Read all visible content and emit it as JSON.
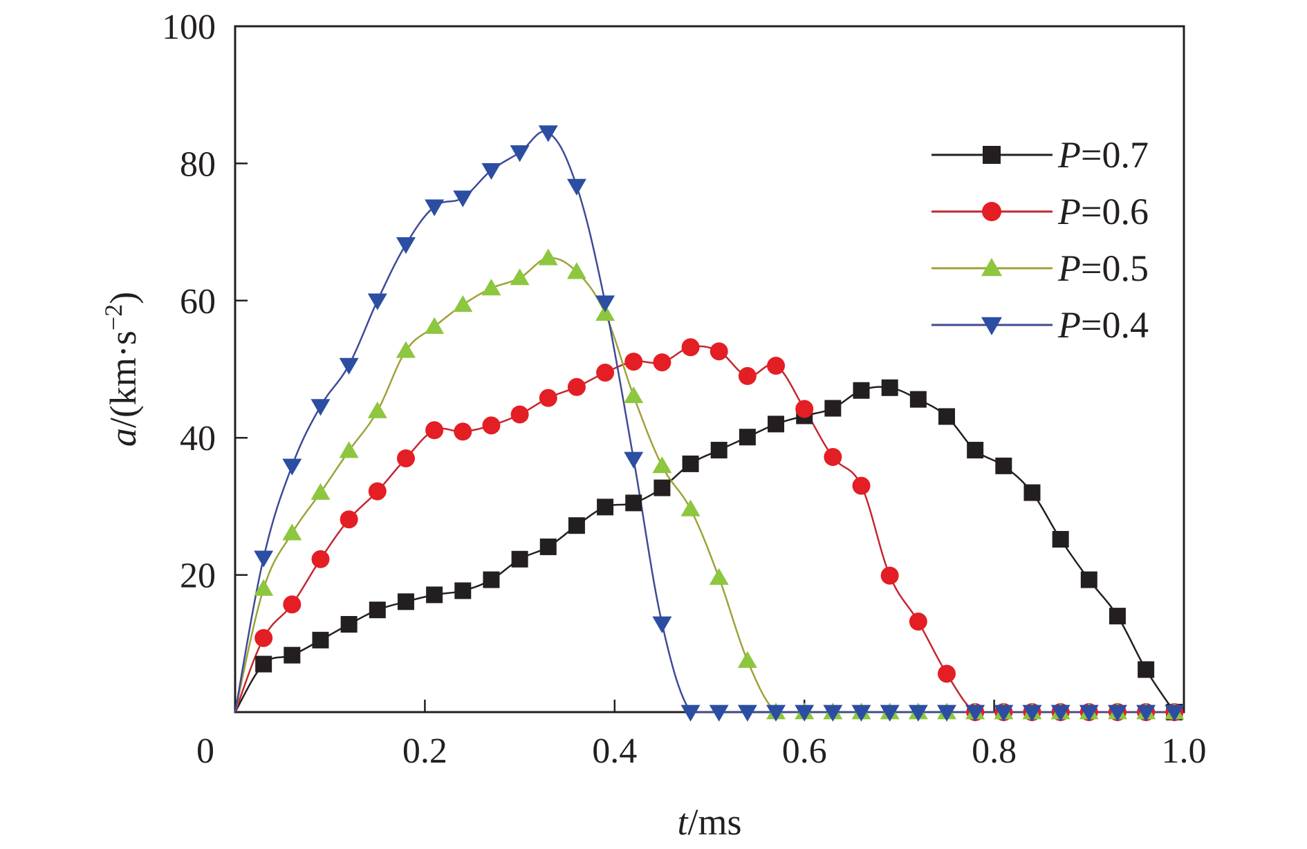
{
  "chart_data": {
    "type": "line",
    "title": "",
    "xlabel": {
      "var": "t",
      "unit": "/ms"
    },
    "ylabel": {
      "var": "a",
      "unit_prefix": "/(km·s",
      "unit_sup": "−2",
      "unit_suffix": ")"
    },
    "xlim": [
      0,
      1.0
    ],
    "ylim": [
      0,
      100
    ],
    "x_ticks": [
      0,
      0.2,
      0.4,
      0.6,
      0.8,
      1.0
    ],
    "x_tick_labels": [
      "0",
      "0.2",
      "0.4",
      "0.6",
      "0.8",
      "1.0"
    ],
    "y_ticks": [
      20,
      40,
      60,
      80,
      100
    ],
    "y_tick_labels": [
      "20",
      "40",
      "60",
      "80",
      "100"
    ],
    "grid": false,
    "legend_position": "top-right",
    "series": [
      {
        "name": "P=0.7",
        "name_var": "P",
        "name_value": "=0.7",
        "color": "#231f20",
        "line_color": "#231f20",
        "marker": "square",
        "x": [
          0,
          0.03,
          0.06,
          0.09,
          0.12,
          0.15,
          0.18,
          0.21,
          0.24,
          0.27,
          0.3,
          0.33,
          0.36,
          0.39,
          0.42,
          0.45,
          0.48,
          0.51,
          0.54,
          0.57,
          0.6,
          0.63,
          0.66,
          0.69,
          0.72,
          0.75,
          0.78,
          0.81,
          0.84,
          0.87,
          0.9,
          0.93,
          0.96,
          0.99
        ],
        "y": [
          0,
          7,
          8.3,
          10.5,
          12.8,
          14.9,
          16.1,
          17.1,
          17.7,
          19.3,
          22.3,
          24.1,
          27.2,
          29.9,
          30.5,
          32.7,
          36.2,
          38.2,
          40.1,
          42.0,
          43.2,
          44.3,
          46.9,
          47.3,
          45.6,
          43.1,
          38.2,
          35.9,
          32.0,
          25.2,
          19.3,
          14.0,
          6.2,
          0
        ]
      },
      {
        "name": "P=0.6",
        "name_var": "P",
        "name_value": "=0.6",
        "color": "#e31e24",
        "line_color": "#c4262e",
        "marker": "circle",
        "x": [
          0,
          0.03,
          0.06,
          0.09,
          0.12,
          0.15,
          0.18,
          0.21,
          0.24,
          0.27,
          0.3,
          0.33,
          0.36,
          0.39,
          0.42,
          0.45,
          0.48,
          0.51,
          0.54,
          0.57,
          0.6,
          0.63,
          0.66,
          0.69,
          0.72,
          0.75,
          0.78,
          0.81,
          0.84,
          0.87,
          0.9,
          0.93,
          0.96,
          0.99
        ],
        "y": [
          0,
          10.8,
          15.7,
          22.3,
          28.1,
          32.2,
          37.0,
          41.1,
          40.9,
          41.8,
          43.4,
          45.8,
          47.4,
          49.5,
          51.1,
          51.0,
          53.2,
          52.6,
          49.0,
          50.5,
          44.2,
          37.2,
          33.0,
          19.9,
          13.2,
          5.6,
          0,
          0,
          0,
          0,
          0,
          0,
          0,
          0
        ]
      },
      {
        "name": "P=0.5",
        "name_var": "P",
        "name_value": "=0.5",
        "color": "#8dc63f",
        "line_color": "#9ea238",
        "marker": "triangle-up",
        "x": [
          0,
          0.03,
          0.06,
          0.09,
          0.12,
          0.15,
          0.18,
          0.21,
          0.24,
          0.27,
          0.3,
          0.33,
          0.36,
          0.39,
          0.42,
          0.45,
          0.48,
          0.51,
          0.54,
          0.57,
          0.6,
          0.63,
          0.66,
          0.69,
          0.72,
          0.75,
          0.78,
          0.81,
          0.84,
          0.87,
          0.9,
          0.93,
          0.96,
          0.99
        ],
        "y": [
          0,
          18.0,
          26.1,
          32.0,
          38.1,
          43.9,
          52.7,
          56.2,
          59.4,
          61.8,
          63.3,
          66.2,
          64.2,
          58.1,
          46.1,
          35.9,
          29.6,
          19.6,
          7.5,
          0,
          0,
          0,
          0,
          0,
          0,
          0,
          0,
          0,
          0,
          0,
          0,
          0,
          0,
          0
        ]
      },
      {
        "name": "P=0.4",
        "name_var": "P",
        "name_value": "=0.4",
        "color": "#2b4ea2",
        "line_color": "#3d4a96",
        "marker": "triangle-down",
        "x": [
          0,
          0.03,
          0.06,
          0.09,
          0.12,
          0.15,
          0.18,
          0.21,
          0.24,
          0.27,
          0.3,
          0.33,
          0.36,
          0.39,
          0.42,
          0.45,
          0.48,
          0.51,
          0.54,
          0.57,
          0.6,
          0.63,
          0.66,
          0.69,
          0.72,
          0.75,
          0.78,
          0.81,
          0.84,
          0.87,
          0.9,
          0.93,
          0.96,
          0.99
        ],
        "y": [
          0,
          22.5,
          35.9,
          44.6,
          50.6,
          60.0,
          68.2,
          73.7,
          75.0,
          79.0,
          81.6,
          84.5,
          76.7,
          59.7,
          36.9,
          12.9,
          0,
          0,
          0,
          0,
          0,
          0,
          0,
          0,
          0,
          0,
          0,
          0,
          0,
          0,
          0,
          0,
          0,
          0
        ]
      }
    ]
  }
}
